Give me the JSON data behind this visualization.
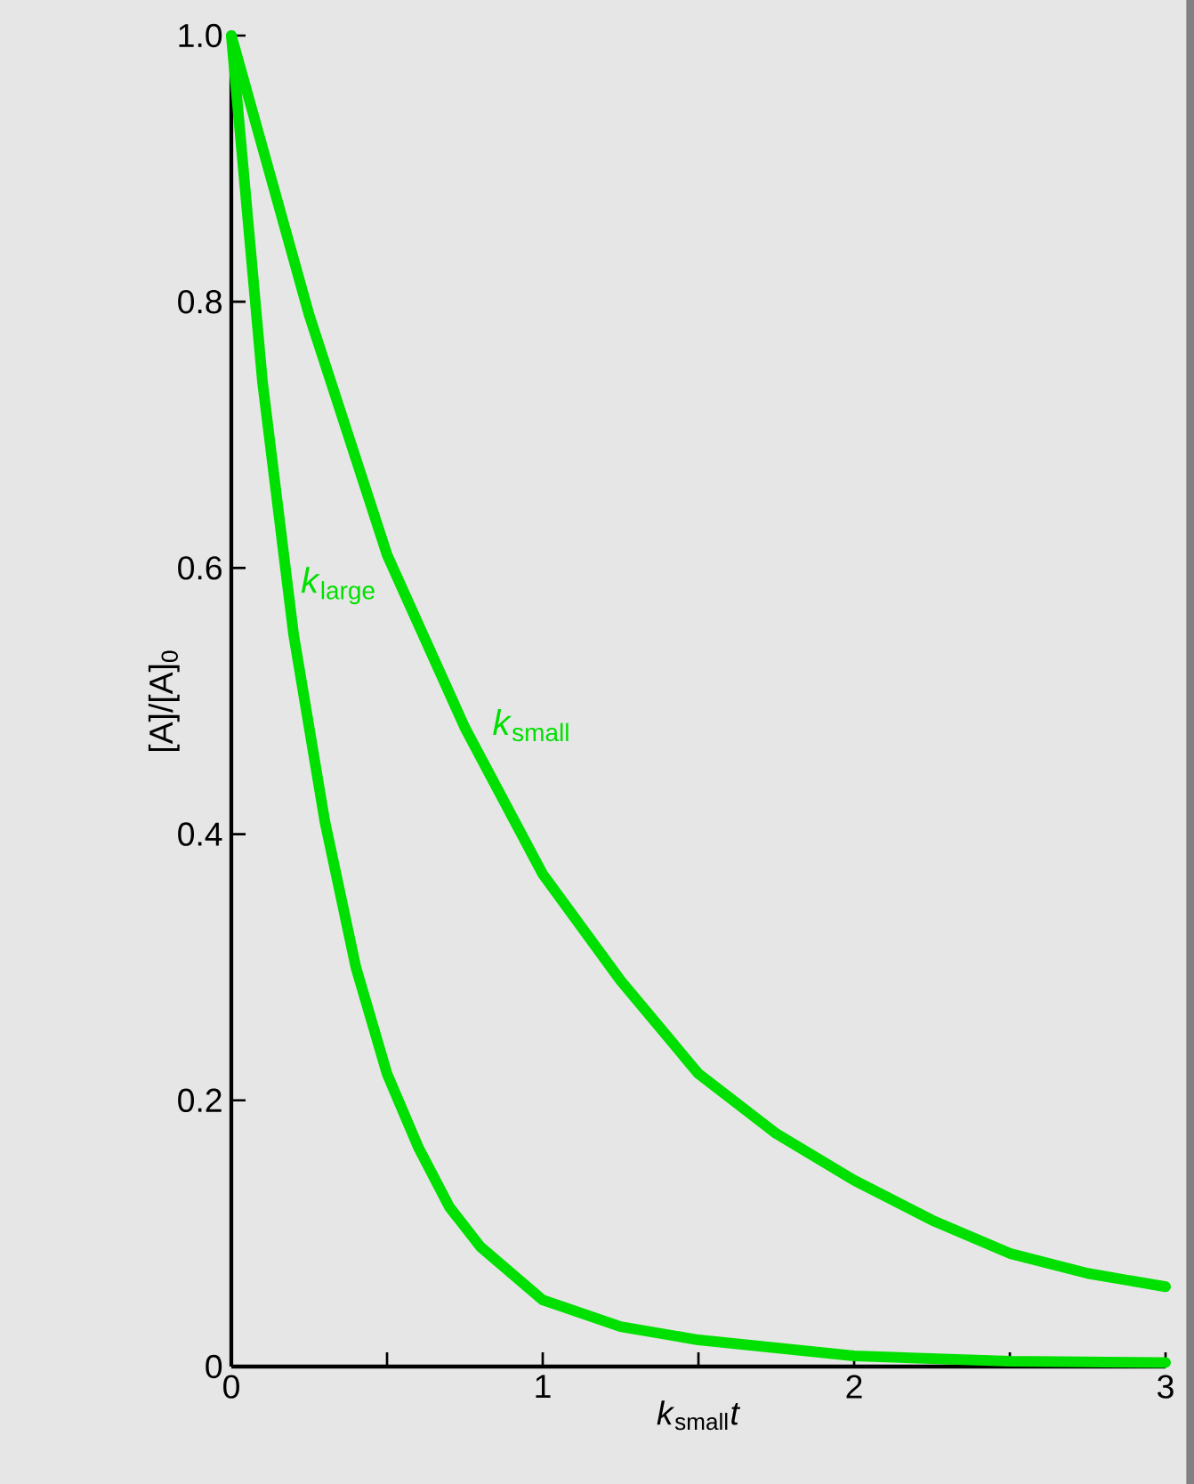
{
  "chart_data": {
    "type": "line",
    "xlabel": "*k*$_{small}$*t*",
    "ylabel": "[A]/[A]$_{0}$",
    "xlim": [
      0,
      3
    ],
    "ylim": [
      0,
      1
    ],
    "xticks": [
      0,
      {
        "value": 0.5,
        "label": null
      },
      1,
      {
        "value": 1.5,
        "label": null
      },
      2,
      {
        "value": 2.5,
        "label": null
      },
      3
    ],
    "yticks": [
      0,
      0.2,
      0.4,
      0.6,
      0.8,
      {
        "value": 1,
        "label": "1.0"
      }
    ],
    "marker": "none",
    "series": [
      {
        "name": "*k*$_{small}$",
        "color": "#00e000",
        "x": [
          0,
          0.25,
          0.5,
          0.75,
          1,
          1.25,
          1.5,
          1.75,
          2,
          2.25,
          2.5,
          2.75,
          3
        ],
        "values": [
          1,
          0.79,
          0.61,
          0.48,
          0.37,
          0.29,
          0.22,
          0.175,
          0.14,
          0.11,
          0.085,
          0.07,
          0.06
        ]
      },
      {
        "name": "*k*$_{large}$",
        "color": "#00e000",
        "x": [
          0,
          0.1,
          0.2,
          0.3,
          0.4,
          0.5,
          0.6,
          0.7,
          0.8,
          1,
          1.25,
          1.5,
          2,
          2.5,
          3
        ],
        "values": [
          1,
          0.74,
          0.55,
          0.41,
          0.3,
          0.22,
          0.165,
          0.12,
          0.09,
          0.05,
          0.03,
          0.02,
          0.008,
          0.004,
          0.003
        ]
      }
    ]
  }
}
